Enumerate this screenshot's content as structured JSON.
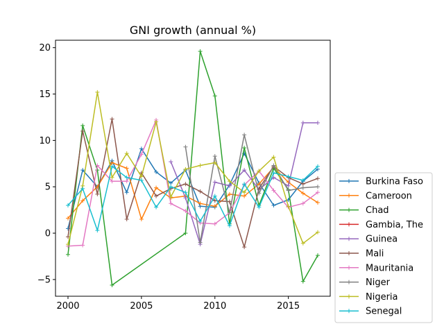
{
  "chart_data": {
    "type": "line",
    "title": "GNI growth (annual %)",
    "xlabel": "",
    "ylabel": "",
    "xlim": [
      1999.15,
      2017.85
    ],
    "ylim": [
      -6.8,
      20.8
    ],
    "xticks": [
      2000,
      2005,
      2010,
      2015
    ],
    "yticks": [
      -5,
      0,
      5,
      10,
      15,
      20
    ],
    "grid": false,
    "legend_position": "lower-right-outside",
    "x": [
      2000,
      2001,
      2002,
      2003,
      2004,
      2005,
      2006,
      2007,
      2008,
      2009,
      2010,
      2011,
      2012,
      2013,
      2014,
      2015,
      2016,
      2017
    ],
    "series": [
      {
        "name": "Burkina Faso",
        "color": "#1f77b4",
        "values": [
          0.5,
          6.8,
          5.0,
          7.8,
          4.4,
          9.1,
          6.6,
          5.4,
          6.8,
          2.9,
          2.8,
          5.2,
          8.6,
          5.4,
          3.0,
          3.6,
          5.6,
          6.9
        ]
      },
      {
        "name": "Cameroon",
        "color": "#ff7f0e",
        "values": [
          1.6,
          3.5,
          5.0,
          7.6,
          7.0,
          1.5,
          4.9,
          3.8,
          4.0,
          3.2,
          2.9,
          4.2,
          4.0,
          5.3,
          7.1,
          5.5,
          4.3,
          3.3
        ]
      },
      {
        "name": "Chad",
        "color": "#2ca02c",
        "values": [
          -2.3,
          11.6,
          6.8,
          -5.6,
          null,
          null,
          null,
          null,
          0.0,
          19.6,
          14.8,
          1.0,
          9.2,
          3.0,
          7.0,
          4.7,
          -5.2,
          -2.4
        ]
      },
      {
        "name": "Gambia, The",
        "color": "#d62728",
        "values": [
          null,
          null,
          null,
          null,
          null,
          null,
          null,
          null,
          null,
          null,
          null,
          null,
          null,
          null,
          null,
          null,
          null,
          null
        ]
      },
      {
        "name": "Guinea",
        "color": "#9467bd",
        "values": [
          null,
          null,
          null,
          null,
          null,
          null,
          null,
          7.7,
          3.8,
          -1.2,
          5.5,
          5.1,
          6.8,
          4.7,
          6.0,
          5.1,
          11.9,
          11.9
        ]
      },
      {
        "name": "Mali",
        "color": "#8c564b",
        "values": [
          -0.4,
          11.0,
          4.2,
          12.3,
          1.5,
          6.5,
          4.0,
          4.8,
          5.3,
          4.5,
          3.5,
          3.4,
          -1.5,
          4.8,
          7.2,
          6.0,
          5.3,
          5.9
        ]
      },
      {
        "name": "Mauritania",
        "color": "#e377c2",
        "values": [
          -1.4,
          -1.3,
          7.3,
          5.6,
          5.6,
          8.5,
          12.2,
          3.2,
          2.4,
          1.1,
          1.0,
          2.2,
          5.2,
          6.7,
          4.6,
          2.8,
          3.2,
          4.4
        ]
      },
      {
        "name": "Niger",
        "color": "#7f7f7f",
        "values": [
          null,
          null,
          null,
          null,
          null,
          null,
          null,
          null,
          9.3,
          -1.0,
          8.3,
          2.2,
          10.6,
          4.3,
          7.3,
          4.6,
          4.9,
          5.0
        ]
      },
      {
        "name": "Nigeria",
        "color": "#bcbd22",
        "values": [
          -1.2,
          5.1,
          15.2,
          6.0,
          8.6,
          6.1,
          12.0,
          3.9,
          6.9,
          7.3,
          7.6,
          5.6,
          4.4,
          6.7,
          8.2,
          2.9,
          -1.1,
          0.1
        ]
      },
      {
        "name": "Senegal",
        "color": "#17becf",
        "values": [
          3.0,
          4.8,
          0.3,
          7.2,
          6.0,
          5.7,
          2.8,
          5.0,
          4.4,
          1.3,
          4.0,
          0.8,
          5.3,
          2.8,
          6.5,
          6.1,
          5.7,
          7.2
        ]
      }
    ]
  }
}
